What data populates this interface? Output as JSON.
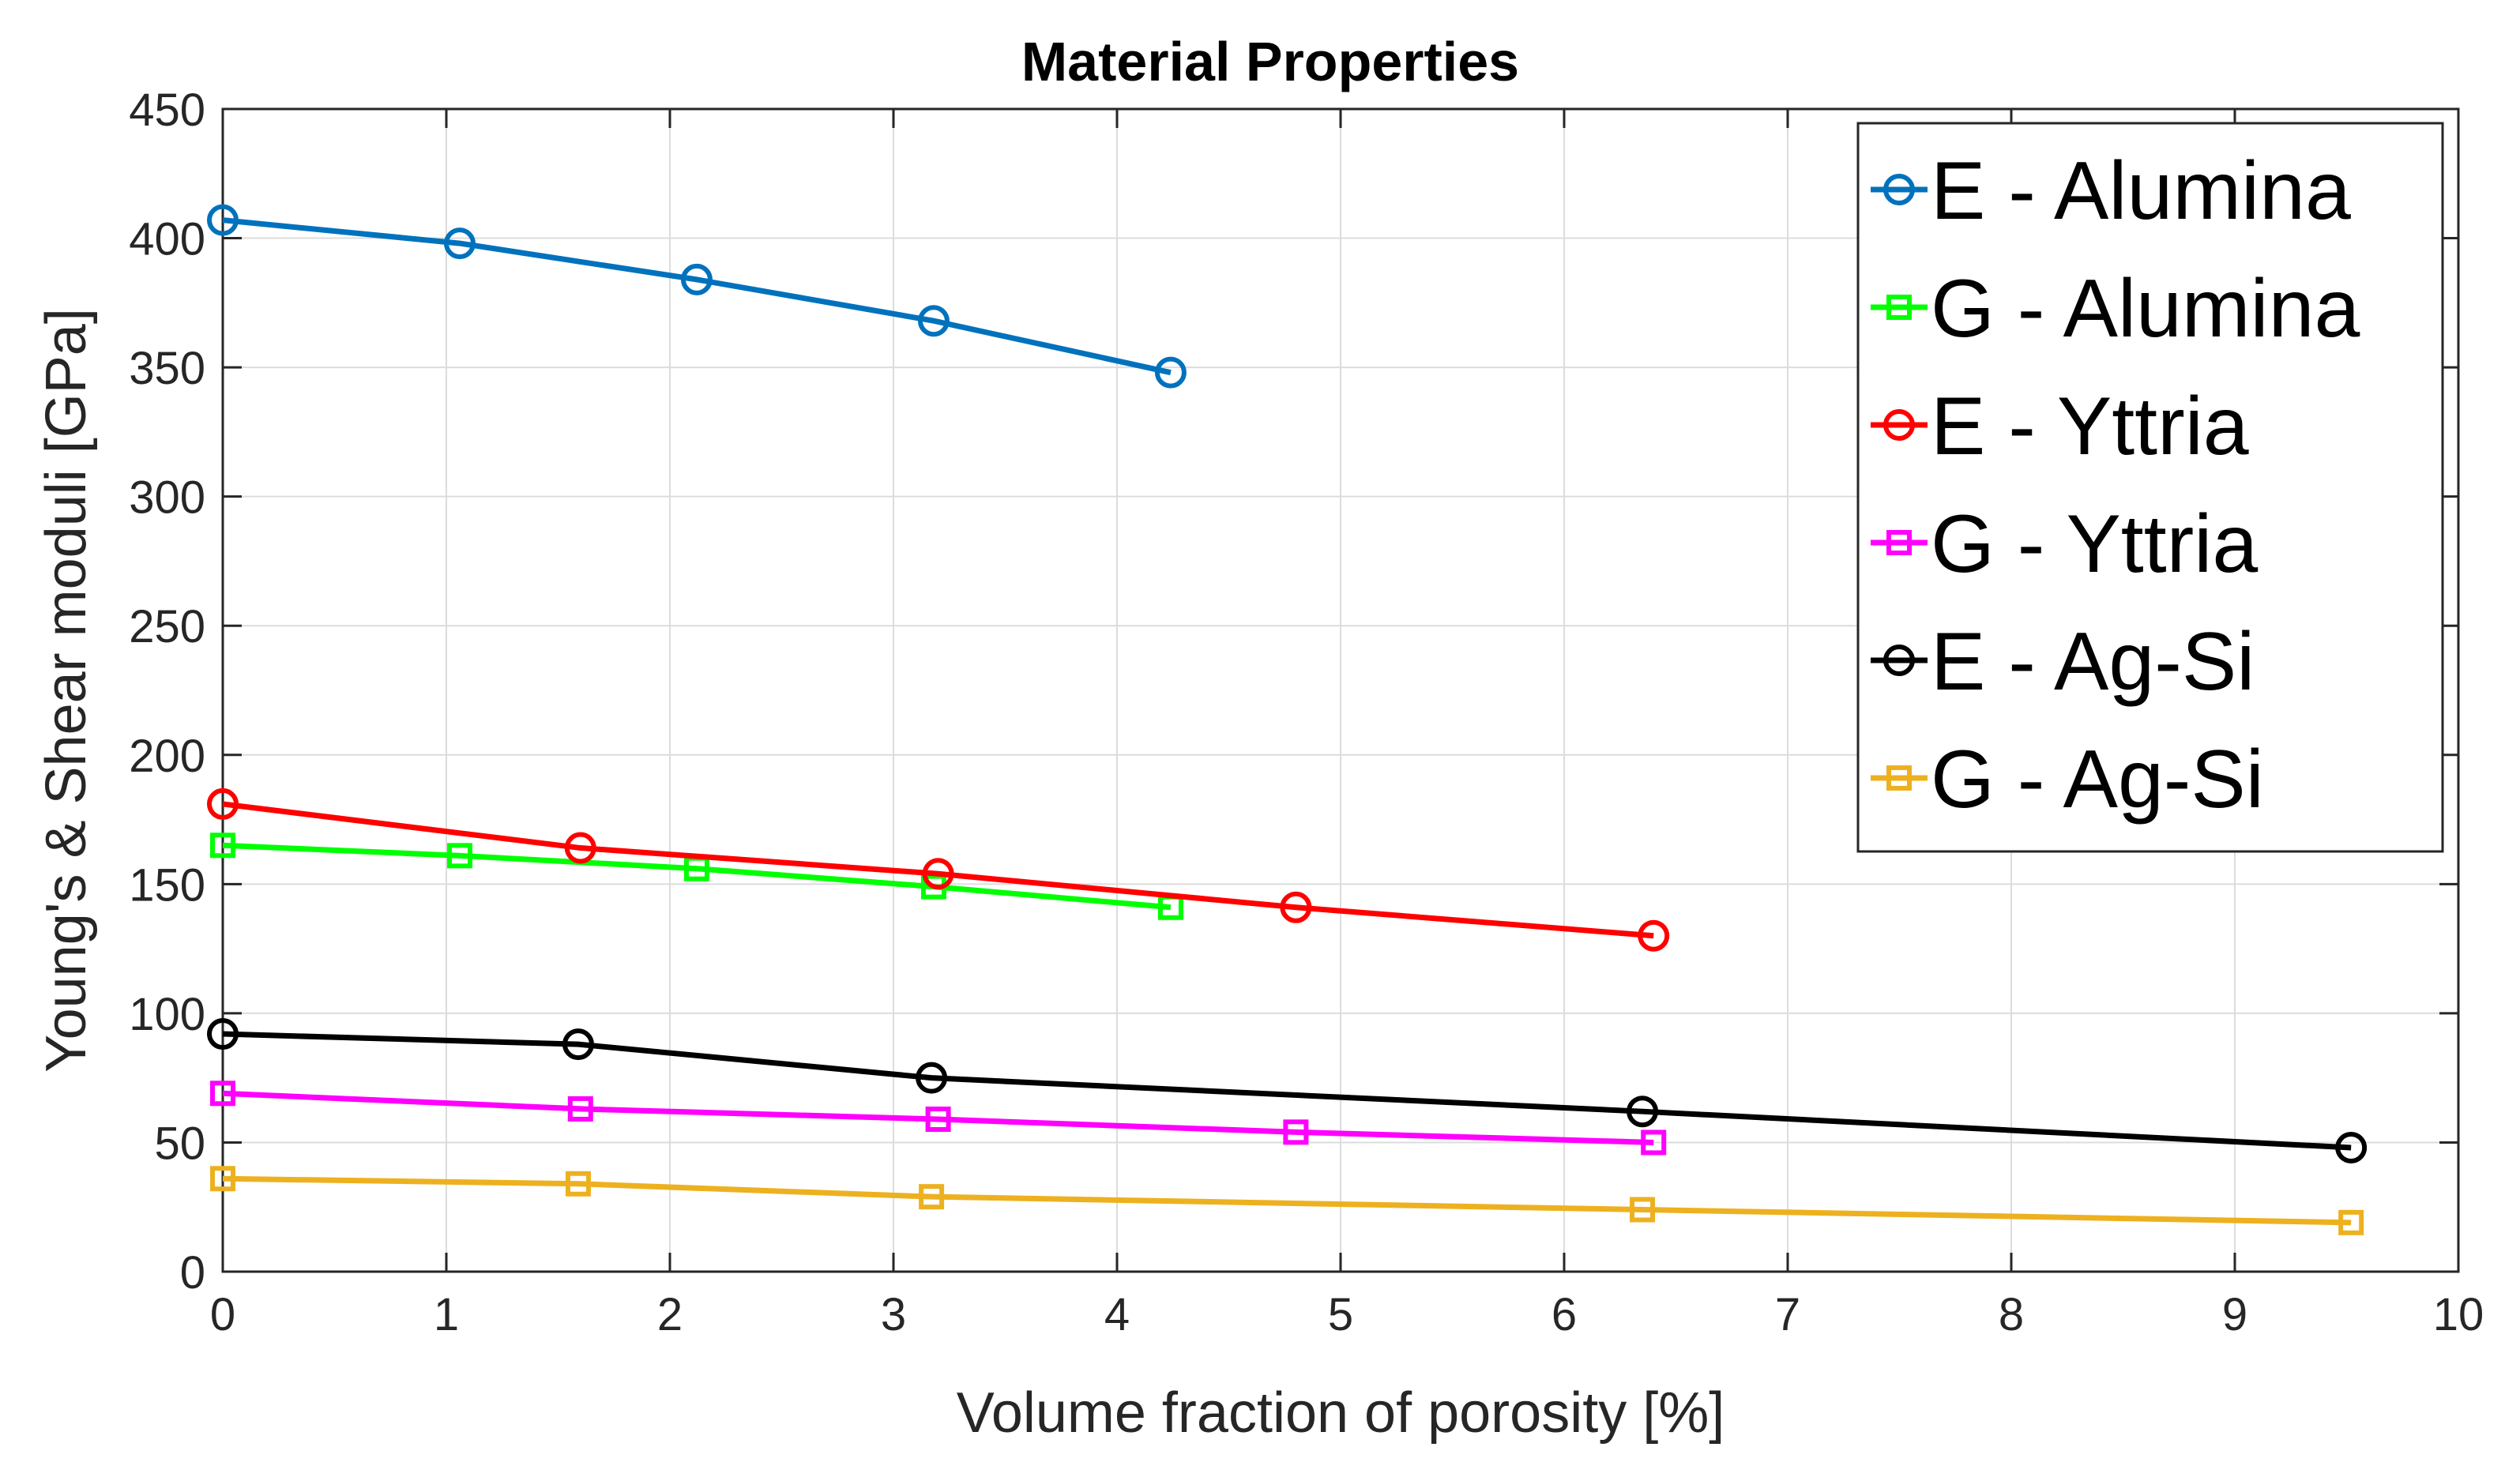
{
  "chart_data": {
    "type": "line",
    "title": "Material Properties",
    "xlabel": "Volume fraction of porosity [%]",
    "ylabel": "Young's & Shear moduli [GPa]",
    "xlim": [
      0,
      10
    ],
    "ylim": [
      0,
      450
    ],
    "xticks": [
      0,
      1,
      2,
      3,
      4,
      5,
      6,
      7,
      8,
      9,
      10
    ],
    "yticks": [
      0,
      50,
      100,
      150,
      200,
      250,
      300,
      350,
      400,
      450
    ],
    "grid": true,
    "legend_position": "top-right",
    "series": [
      {
        "name": "E - Alumina",
        "marker": "circle",
        "color": "#0072BD",
        "x": [
          0,
          1.06,
          2.12,
          3.18,
          4.24
        ],
        "y": [
          407,
          398,
          384,
          368,
          348
        ]
      },
      {
        "name": "G - Alumina",
        "marker": "square",
        "color": "#00FF00",
        "x": [
          0,
          1.06,
          2.12,
          3.18,
          4.24
        ],
        "y": [
          165,
          161,
          156,
          149,
          141
        ]
      },
      {
        "name": "E - Yttria",
        "marker": "circle",
        "color": "#FF0000",
        "x": [
          0,
          1.6,
          3.2,
          4.8,
          6.4
        ],
        "y": [
          181,
          164,
          154,
          141,
          130
        ]
      },
      {
        "name": "G - Yttria",
        "marker": "square",
        "color": "#FF00FF",
        "x": [
          0,
          1.6,
          3.2,
          4.8,
          6.4
        ],
        "y": [
          69,
          63,
          59,
          54,
          50
        ]
      },
      {
        "name": " E - Ag-Si",
        "marker": "circle",
        "color": "#000000",
        "x": [
          0,
          1.59,
          3.17,
          6.35,
          9.52
        ],
        "y": [
          92,
          88,
          75,
          62,
          48
        ]
      },
      {
        "name": "G - Ag-Si",
        "marker": "square",
        "color": "#EDB120",
        "x": [
          0,
          1.59,
          3.17,
          6.35,
          9.52
        ],
        "y": [
          36,
          34,
          29,
          24,
          19
        ]
      }
    ]
  }
}
